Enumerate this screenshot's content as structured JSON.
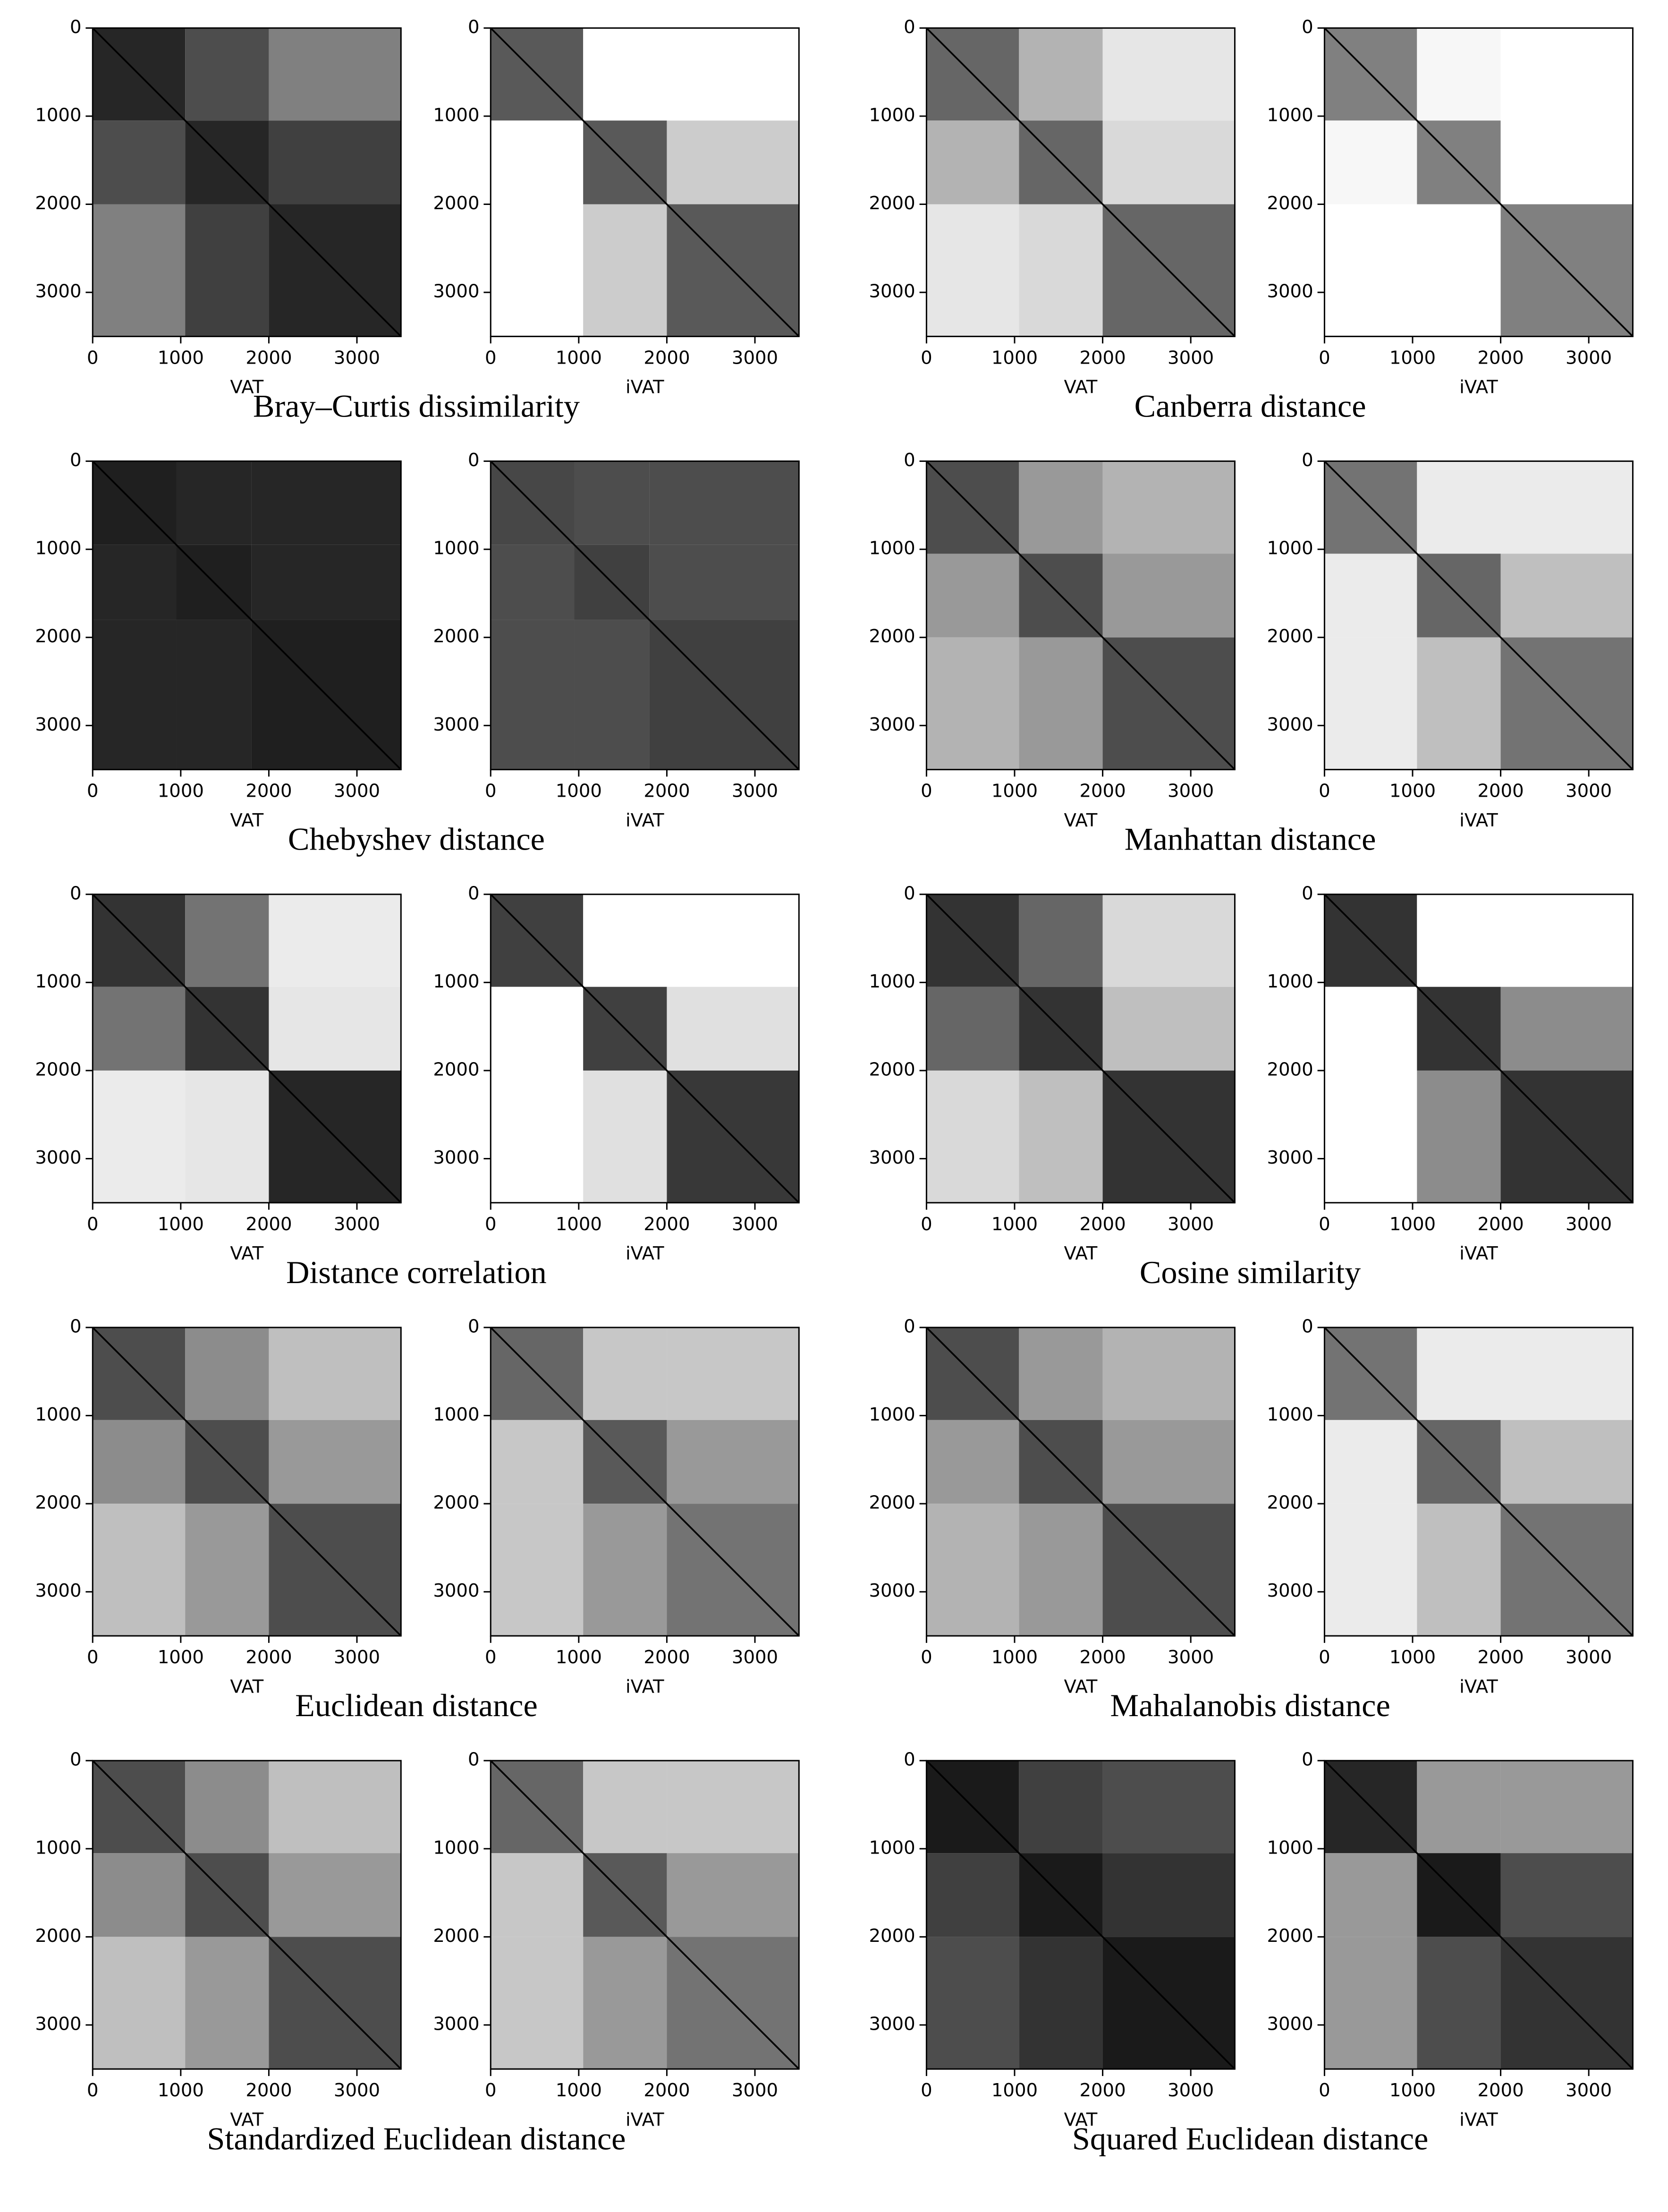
{
  "chart_data": [
    {
      "type": "heatmap",
      "title": "Bray–Curtis dissimilarity",
      "xlim": [
        0,
        3500
      ],
      "ylim": [
        3500,
        0
      ],
      "xticks": [
        0,
        1000,
        2000,
        3000
      ],
      "yticks": [
        0,
        1000,
        2000,
        3000
      ],
      "images": [
        {
          "xlabel": "VAT",
          "boundaries": [
            0,
            1050,
            2000,
            3500
          ],
          "levels": [
            [
              0.15,
              0.3,
              0.5
            ],
            [
              0.3,
              0.15,
              0.25
            ],
            [
              0.5,
              0.25,
              0.15
            ]
          ]
        },
        {
          "xlabel": "iVAT",
          "boundaries": [
            0,
            1050,
            2000,
            3500
          ],
          "levels": [
            [
              0.35,
              1,
              1
            ],
            [
              1,
              0.35,
              0.8
            ],
            [
              1,
              0.8,
              0.35
            ]
          ]
        }
      ]
    },
    {
      "type": "heatmap",
      "title": "Canberra distance",
      "xlim": [
        0,
        3500
      ],
      "ylim": [
        3500,
        0
      ],
      "xticks": [
        0,
        1000,
        2000,
        3000
      ],
      "yticks": [
        0,
        1000,
        2000,
        3000
      ],
      "images": [
        {
          "xlabel": "VAT",
          "boundaries": [
            0,
            1050,
            2000,
            3500
          ],
          "levels": [
            [
              0.4,
              0.7,
              0.9
            ],
            [
              0.7,
              0.4,
              0.85
            ],
            [
              0.9,
              0.85,
              0.4
            ]
          ]
        },
        {
          "xlabel": "iVAT",
          "boundaries": [
            0,
            1050,
            2000,
            3500
          ],
          "levels": [
            [
              0.5,
              0.97,
              1
            ],
            [
              0.97,
              0.5,
              1
            ],
            [
              1,
              1,
              0.5
            ]
          ]
        }
      ]
    },
    {
      "type": "heatmap",
      "title": "Chebyshev distance",
      "xlim": [
        0,
        3500
      ],
      "ylim": [
        3500,
        0
      ],
      "xticks": [
        0,
        1000,
        2000,
        3000
      ],
      "yticks": [
        0,
        1000,
        2000,
        3000
      ],
      "images": [
        {
          "xlabel": "VAT",
          "boundaries": [
            0,
            950,
            1800,
            3500
          ],
          "levels": [
            [
              0.12,
              0.15,
              0.15
            ],
            [
              0.15,
              0.12,
              0.15
            ],
            [
              0.15,
              0.15,
              0.12
            ]
          ]
        },
        {
          "xlabel": "iVAT",
          "boundaries": [
            0,
            950,
            1800,
            3500
          ],
          "levels": [
            [
              0.28,
              0.3,
              0.3
            ],
            [
              0.3,
              0.25,
              0.3
            ],
            [
              0.3,
              0.3,
              0.25
            ]
          ]
        }
      ]
    },
    {
      "type": "heatmap",
      "title": "Manhattan distance",
      "xlim": [
        0,
        3500
      ],
      "ylim": [
        3500,
        0
      ],
      "xticks": [
        0,
        1000,
        2000,
        3000
      ],
      "yticks": [
        0,
        1000,
        2000,
        3000
      ],
      "images": [
        {
          "xlabel": "VAT",
          "boundaries": [
            0,
            1050,
            2000,
            3500
          ],
          "levels": [
            [
              0.3,
              0.6,
              0.7
            ],
            [
              0.6,
              0.3,
              0.6
            ],
            [
              0.7,
              0.6,
              0.3
            ]
          ]
        },
        {
          "xlabel": "iVAT",
          "boundaries": [
            0,
            1050,
            2000,
            3500
          ],
          "levels": [
            [
              0.45,
              0.92,
              0.92
            ],
            [
              0.92,
              0.4,
              0.75
            ],
            [
              0.92,
              0.75,
              0.45
            ]
          ]
        }
      ]
    },
    {
      "type": "heatmap",
      "title": "Distance correlation",
      "xlim": [
        0,
        3500
      ],
      "ylim": [
        3500,
        0
      ],
      "xticks": [
        0,
        1000,
        2000,
        3000
      ],
      "yticks": [
        0,
        1000,
        2000,
        3000
      ],
      "images": [
        {
          "xlabel": "VAT",
          "boundaries": [
            0,
            1050,
            2000,
            3500
          ],
          "levels": [
            [
              0.2,
              0.45,
              0.92
            ],
            [
              0.45,
              0.2,
              0.9
            ],
            [
              0.92,
              0.9,
              0.15
            ]
          ]
        },
        {
          "xlabel": "iVAT",
          "boundaries": [
            0,
            1050,
            2000,
            3500
          ],
          "levels": [
            [
              0.25,
              1,
              1
            ],
            [
              1,
              0.25,
              0.88
            ],
            [
              1,
              0.88,
              0.22
            ]
          ]
        }
      ]
    },
    {
      "type": "heatmap",
      "title": "Cosine similarity",
      "xlim": [
        0,
        3500
      ],
      "ylim": [
        3500,
        0
      ],
      "xticks": [
        0,
        1000,
        2000,
        3000
      ],
      "yticks": [
        0,
        1000,
        2000,
        3000
      ],
      "images": [
        {
          "xlabel": "VAT",
          "boundaries": [
            0,
            1050,
            2000,
            3500
          ],
          "levels": [
            [
              0.2,
              0.4,
              0.85
            ],
            [
              0.4,
              0.2,
              0.75
            ],
            [
              0.85,
              0.75,
              0.2
            ]
          ]
        },
        {
          "xlabel": "iVAT",
          "boundaries": [
            0,
            1050,
            2000,
            3500
          ],
          "levels": [
            [
              0.2,
              1,
              1
            ],
            [
              1,
              0.2,
              0.55
            ],
            [
              1,
              0.55,
              0.2
            ]
          ]
        }
      ]
    },
    {
      "type": "heatmap",
      "title": "Euclidean distance",
      "xlim": [
        0,
        3500
      ],
      "ylim": [
        3500,
        0
      ],
      "xticks": [
        0,
        1000,
        2000,
        3000
      ],
      "yticks": [
        0,
        1000,
        2000,
        3000
      ],
      "images": [
        {
          "xlabel": "VAT",
          "boundaries": [
            0,
            1050,
            2000,
            3500
          ],
          "levels": [
            [
              0.3,
              0.55,
              0.75
            ],
            [
              0.55,
              0.3,
              0.6
            ],
            [
              0.75,
              0.6,
              0.3
            ]
          ]
        },
        {
          "xlabel": "iVAT",
          "boundaries": [
            0,
            1050,
            2000,
            3500
          ],
          "levels": [
            [
              0.4,
              0.78,
              0.78
            ],
            [
              0.78,
              0.35,
              0.6
            ],
            [
              0.78,
              0.6,
              0.45
            ]
          ]
        }
      ]
    },
    {
      "type": "heatmap",
      "title": "Mahalanobis distance",
      "xlim": [
        0,
        3500
      ],
      "ylim": [
        3500,
        0
      ],
      "xticks": [
        0,
        1000,
        2000,
        3000
      ],
      "yticks": [
        0,
        1000,
        2000,
        3000
      ],
      "images": [
        {
          "xlabel": "VAT",
          "boundaries": [
            0,
            1050,
            2000,
            3500
          ],
          "levels": [
            [
              0.3,
              0.6,
              0.7
            ],
            [
              0.6,
              0.3,
              0.6
            ],
            [
              0.7,
              0.6,
              0.3
            ]
          ]
        },
        {
          "xlabel": "iVAT",
          "boundaries": [
            0,
            1050,
            2000,
            3500
          ],
          "levels": [
            [
              0.45,
              0.92,
              0.92
            ],
            [
              0.92,
              0.4,
              0.75
            ],
            [
              0.92,
              0.75,
              0.45
            ]
          ]
        }
      ]
    },
    {
      "type": "heatmap",
      "title": "Standardized Euclidean distance",
      "xlim": [
        0,
        3500
      ],
      "ylim": [
        3500,
        0
      ],
      "xticks": [
        0,
        1000,
        2000,
        3000
      ],
      "yticks": [
        0,
        1000,
        2000,
        3000
      ],
      "images": [
        {
          "xlabel": "VAT",
          "boundaries": [
            0,
            1050,
            2000,
            3500
          ],
          "levels": [
            [
              0.3,
              0.55,
              0.75
            ],
            [
              0.55,
              0.3,
              0.6
            ],
            [
              0.75,
              0.6,
              0.3
            ]
          ]
        },
        {
          "xlabel": "iVAT",
          "boundaries": [
            0,
            1050,
            2000,
            3500
          ],
          "levels": [
            [
              0.4,
              0.78,
              0.78
            ],
            [
              0.78,
              0.35,
              0.6
            ],
            [
              0.78,
              0.6,
              0.45
            ]
          ]
        }
      ]
    },
    {
      "type": "heatmap",
      "title": "Squared Euclidean distance",
      "xlim": [
        0,
        3500
      ],
      "ylim": [
        3500,
        0
      ],
      "xticks": [
        0,
        1000,
        2000,
        3000
      ],
      "yticks": [
        0,
        1000,
        2000,
        3000
      ],
      "images": [
        {
          "xlabel": "VAT",
          "boundaries": [
            0,
            1050,
            2000,
            3500
          ],
          "levels": [
            [
              0.1,
              0.25,
              0.3
            ],
            [
              0.25,
              0.1,
              0.2
            ],
            [
              0.3,
              0.2,
              0.1
            ]
          ]
        },
        {
          "xlabel": "iVAT",
          "boundaries": [
            0,
            1050,
            2000,
            3500
          ],
          "levels": [
            [
              0.15,
              0.6,
              0.6
            ],
            [
              0.6,
              0.1,
              0.3
            ],
            [
              0.6,
              0.3,
              0.2
            ]
          ]
        }
      ]
    }
  ]
}
